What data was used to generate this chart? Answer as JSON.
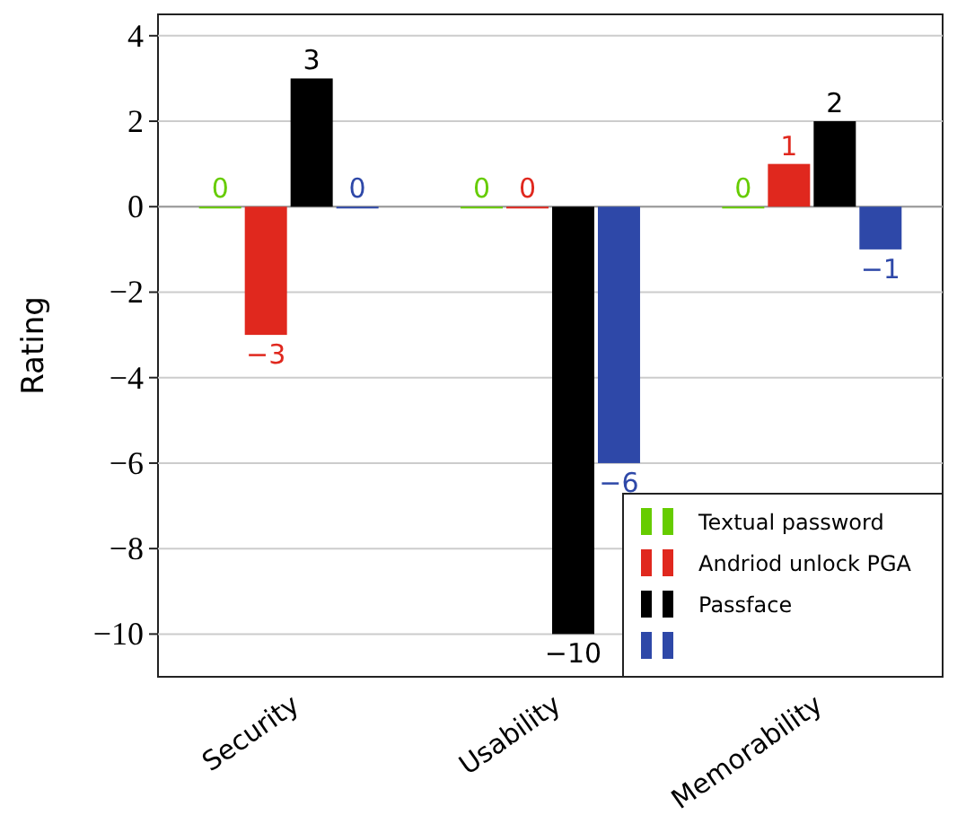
{
  "chart_data": {
    "type": "bar",
    "ylabel": "Rating",
    "categories": [
      "Security",
      "Usability",
      "Memorability"
    ],
    "series": [
      {
        "name": "Textual password",
        "color": "#66cc00",
        "values": [
          0,
          0,
          0
        ]
      },
      {
        "name": "Andriod unlock PGA",
        "color": "#e0281e",
        "values": [
          -3,
          0,
          1
        ]
      },
      {
        "name": "Passface",
        "color": "#000000",
        "values": [
          3,
          -10,
          2
        ]
      },
      {
        "color": "#2e48a8",
        "values": [
          0,
          -6,
          -1
        ]
      }
    ],
    "ylim": [
      -11,
      4.5
    ],
    "yticks": [
      4,
      2,
      0,
      -2,
      -4,
      -6,
      -8,
      -10
    ],
    "grid": "y",
    "legend": "bottom right",
    "data_labels": true
  }
}
